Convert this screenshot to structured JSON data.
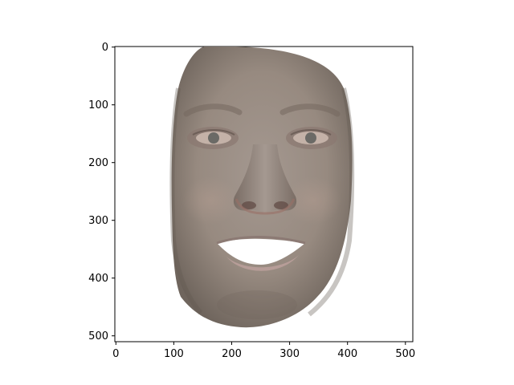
{
  "figure": {
    "x_ticks": [
      "0",
      "100",
      "200",
      "300",
      "400",
      "500"
    ],
    "y_ticks": [
      "0",
      "100",
      "200",
      "300",
      "400",
      "500"
    ],
    "image_subject": "rendered 3D face mesh with neutral skin texture, open-mouth smile showing teeth",
    "skin_color": "#9b8e84",
    "background_color": "#ffffff"
  }
}
